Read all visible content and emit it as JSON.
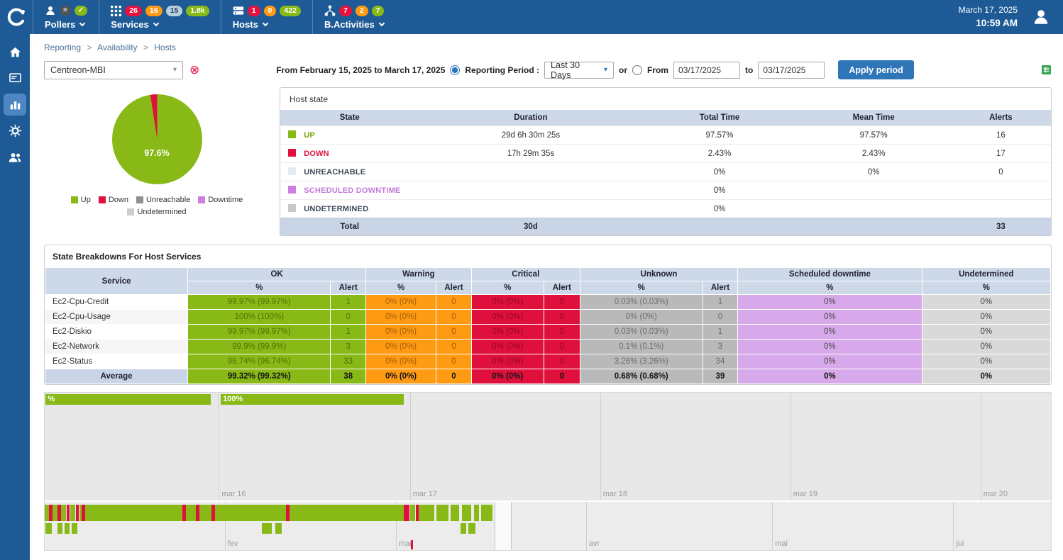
{
  "icons": {
    "caret_down": "▾",
    "clear": "⊗"
  },
  "topbar": {
    "date": "March 17, 2025",
    "time": "10:59 AM",
    "pollers": {
      "label": "Pollers",
      "chips": [
        {
          "glyph": "≡",
          "color": "#4f5458"
        },
        {
          "glyph": "✓",
          "color": "#88b917"
        }
      ]
    },
    "services": {
      "label": "Services",
      "badges": [
        {
          "value": "26",
          "bg": "#e8113d",
          "fg": "#ffffff"
        },
        {
          "value": "16",
          "bg": "#ff9a13",
          "fg": "#ffffff"
        },
        {
          "value": "15",
          "bg": "#b9cfdd",
          "fg": "#24435c"
        },
        {
          "value": "1.8k",
          "bg": "#88b917",
          "fg": "#ffffff"
        }
      ]
    },
    "hosts": {
      "label": "Hosts",
      "badges": [
        {
          "value": "1",
          "bg": "#e8113d",
          "fg": "#ffffff"
        },
        {
          "value": "0",
          "bg": "#ff9a13",
          "fg": "#ffffff"
        },
        {
          "value": "422",
          "bg": "#88b917",
          "fg": "#ffffff"
        }
      ]
    },
    "bactivities": {
      "label": "B.Activities",
      "badges": [
        {
          "value": "7",
          "bg": "#e8113d",
          "fg": "#ffffff"
        },
        {
          "value": "2",
          "bg": "#ff9a13",
          "fg": "#ffffff"
        },
        {
          "value": "7",
          "bg": "#88b917",
          "fg": "#ffffff"
        }
      ]
    }
  },
  "breadcrumb": {
    "sep": ">",
    "items": [
      "Reporting",
      "Availability",
      "Hosts"
    ]
  },
  "filter": {
    "host_select_value": "Centreon-MBI",
    "summary": "From February 15, 2025 to March 17, 2025",
    "reporting_period_label": "Reporting Period :",
    "period_select_value": "Last 30 Days",
    "or_label": "or",
    "from_label": "From",
    "from_value": "03/17/2025",
    "to_label": "to",
    "to_value": "03/17/2025",
    "apply_label": "Apply period"
  },
  "pie": {
    "label": "97.6%",
    "up_pct": 97.57,
    "down_pct": 2.43,
    "colors": {
      "up": "#88b917",
      "down": "#e0103d"
    },
    "legend": [
      {
        "label": "Up",
        "color": "#88b917"
      },
      {
        "label": "Down",
        "color": "#e0103d"
      },
      {
        "label": "Unreachable",
        "color": "#919191"
      },
      {
        "label": "Downtime",
        "color": "#cd7ee3"
      },
      {
        "label": "Undetermined",
        "color": "#cdcdcd"
      }
    ]
  },
  "host_state": {
    "title": "Host state",
    "columns": [
      "State",
      "Duration",
      "Total Time",
      "Mean Time",
      "Alerts"
    ],
    "rows": [
      {
        "label": "UP",
        "swatch": "#88b917",
        "text_color": "#76a509",
        "duration": "29d 6h 30m 25s",
        "total_time": "97.57%",
        "mean_time": "97.57%",
        "alerts": "16"
      },
      {
        "label": "DOWN",
        "swatch": "#e0103d",
        "text_color": "#e0103d",
        "duration": "17h 29m 35s",
        "total_time": "2.43%",
        "mean_time": "2.43%",
        "alerts": "17"
      },
      {
        "label": "UNREACHABLE",
        "swatch": "#e4edf5",
        "text_color": "#3f4a55",
        "duration": "",
        "total_time": "0%",
        "mean_time": "0%",
        "alerts": "0"
      },
      {
        "label": "SCHEDULED DOWNTIME",
        "swatch": "#cd7ee3",
        "text_color": "#c279d8",
        "duration": "",
        "total_time": "0%",
        "mean_time": "",
        "alerts": ""
      },
      {
        "label": "UNDETERMINED",
        "swatch": "#c9c9c9",
        "text_color": "#3f4a55",
        "duration": "",
        "total_time": "0%",
        "mean_time": "",
        "alerts": ""
      }
    ],
    "total": {
      "label": "Total",
      "duration": "30d",
      "total_time": "",
      "mean_time": "",
      "alerts": "33"
    }
  },
  "breakdown": {
    "title": "State Breakdowns For Host Services",
    "header": {
      "service": "Service",
      "ok": "OK",
      "warning": "Warning",
      "critical": "Critical",
      "unknown": "Unknown",
      "scheduled": "Scheduled downtime",
      "undetermined": "Undetermined",
      "pct": "%",
      "alert": "Alert"
    },
    "rows": [
      {
        "service": "Ec2-Cpu-Credit",
        "ok_pct": "99.97% (99.97%)",
        "ok_alert": "1",
        "warning_pct": "0% (0%)",
        "warning_alert": "0",
        "critical_pct": "0% (0%)",
        "critical_alert": "0",
        "unknown_pct": "0.03% (0.03%)",
        "unknown_alert": "1",
        "scheduled_pct": "0%",
        "undetermined_pct": "0%"
      },
      {
        "service": "Ec2-Cpu-Usage",
        "ok_pct": "100% (100%)",
        "ok_alert": "0",
        "warning_pct": "0% (0%)",
        "warning_alert": "0",
        "critical_pct": "0% (0%)",
        "critical_alert": "0",
        "unknown_pct": "0% (0%)",
        "unknown_alert": "0",
        "scheduled_pct": "0%",
        "undetermined_pct": "0%"
      },
      {
        "service": "Ec2-Diskio",
        "ok_pct": "99.97% (99.97%)",
        "ok_alert": "1",
        "warning_pct": "0% (0%)",
        "warning_alert": "0",
        "critical_pct": "0% (0%)",
        "critical_alert": "0",
        "unknown_pct": "0.03% (0.03%)",
        "unknown_alert": "1",
        "scheduled_pct": "0%",
        "undetermined_pct": "0%"
      },
      {
        "service": "Ec2-Network",
        "ok_pct": "99.9% (99.9%)",
        "ok_alert": "3",
        "warning_pct": "0% (0%)",
        "warning_alert": "0",
        "critical_pct": "0% (0%)",
        "critical_alert": "0",
        "unknown_pct": "0.1% (0.1%)",
        "unknown_alert": "3",
        "scheduled_pct": "0%",
        "undetermined_pct": "0%"
      },
      {
        "service": "Ec2-Status",
        "ok_pct": "96.74% (96.74%)",
        "ok_alert": "33",
        "warning_pct": "0% (0%)",
        "warning_alert": "0",
        "critical_pct": "0% (0%)",
        "critical_alert": "0",
        "unknown_pct": "3.26% (3.26%)",
        "unknown_alert": "34",
        "scheduled_pct": "0%",
        "undetermined_pct": "0%"
      }
    ],
    "average": {
      "service": "Average",
      "ok_pct": "99.32% (99.32%)",
      "ok_alert": "38",
      "warning_pct": "0% (0%)",
      "warning_alert": "0",
      "critical_pct": "0% (0%)",
      "critical_alert": "0",
      "unknown_pct": "0.68% (0.68%)",
      "unknown_alert": "39",
      "scheduled_pct": "0%",
      "undetermined_pct": "0%"
    }
  },
  "timeline": {
    "colors": {
      "g": "#88b917",
      "r": "#e0103d"
    },
    "top": {
      "bar_color": "#88b917",
      "bars": [
        {
          "label": "%",
          "start": 0.1,
          "width": 16.4
        },
        {
          "label": "100%",
          "start": 17.5,
          "width": 18.2
        }
      ],
      "gridlines": [
        17.3,
        36.3,
        55.2,
        74.1,
        93.0
      ],
      "labels": [
        {
          "text": "mar 16",
          "x": 17.3
        },
        {
          "text": "mar 17",
          "x": 36.3
        },
        {
          "text": "mar 18",
          "x": 55.2
        },
        {
          "text": "mar 19",
          "x": 74.1
        },
        {
          "text": "mar 20",
          "x": 93.0
        }
      ]
    },
    "overview": {
      "gridlines": [
        17.9,
        34.9,
        53.8,
        72.3,
        90.3
      ],
      "labels": [
        {
          "text": "fev",
          "x": 17.9
        },
        {
          "text": "mar",
          "x": 34.9
        },
        {
          "text": "avr",
          "x": 53.8
        },
        {
          "text": "mai",
          "x": 72.3
        },
        {
          "text": "jui",
          "x": 90.3
        }
      ],
      "selection": {
        "start": 44.7,
        "width": 1.7
      },
      "marker": {
        "x": 36.4,
        "color": "#e0103d"
      },
      "row1": [
        [
          0.0,
          0.45,
          "g"
        ],
        [
          0.45,
          0.3,
          "r"
        ],
        [
          0.8,
          0.45,
          "g"
        ],
        [
          1.3,
          0.3,
          "r"
        ],
        [
          1.65,
          0.5,
          "g"
        ],
        [
          2.2,
          0.3,
          "r"
        ],
        [
          2.55,
          0.5,
          "g"
        ],
        [
          3.1,
          0.3,
          "r"
        ],
        [
          3.45,
          0.25,
          "g"
        ],
        [
          3.7,
          0.3,
          "r"
        ],
        [
          4.05,
          9.6,
          "g"
        ],
        [
          13.7,
          0.3,
          "r"
        ],
        [
          14.05,
          0.95,
          "g"
        ],
        [
          15.05,
          0.3,
          "r"
        ],
        [
          15.4,
          1.15,
          "g"
        ],
        [
          16.6,
          0.3,
          "r"
        ],
        [
          16.95,
          7.0,
          "g"
        ],
        [
          24.0,
          0.3,
          "r"
        ],
        [
          24.35,
          11.3,
          "g"
        ],
        [
          35.7,
          0.55,
          "r"
        ],
        [
          36.3,
          0.5,
          "g"
        ],
        [
          36.85,
          0.3,
          "r"
        ],
        [
          37.2,
          1.5,
          "g"
        ],
        [
          38.95,
          1.15,
          "g"
        ],
        [
          40.35,
          0.8,
          "g"
        ],
        [
          41.45,
          0.95,
          "g"
        ],
        [
          42.65,
          0.5,
          "g"
        ],
        [
          43.4,
          1.1,
          "g"
        ]
      ],
      "row2": [
        [
          0.1,
          0.6,
          "g"
        ],
        [
          1.25,
          0.5,
          "g"
        ],
        [
          1.95,
          0.5,
          "g"
        ],
        [
          2.65,
          0.6,
          "g"
        ],
        [
          21.6,
          1.0,
          "g"
        ],
        [
          22.95,
          0.6,
          "g"
        ],
        [
          41.3,
          0.6,
          "g"
        ],
        [
          42.1,
          0.7,
          "g"
        ]
      ]
    }
  }
}
